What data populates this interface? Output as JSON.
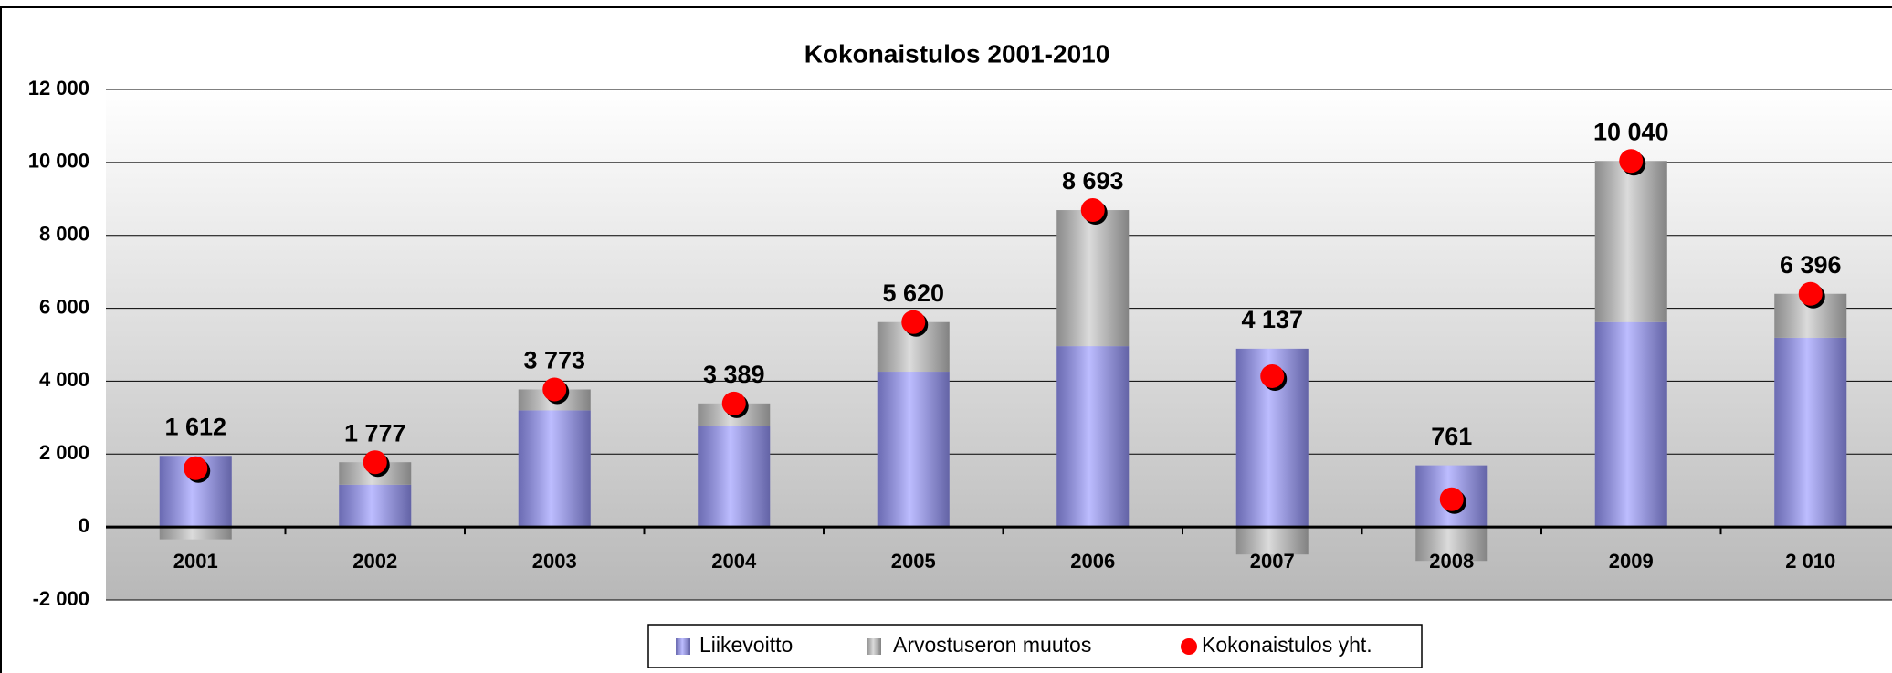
{
  "chart_data": {
    "type": "bar",
    "stacked": true,
    "title": "Kokonaistulos 2001-2010",
    "categories": [
      "2001",
      "2002",
      "2003",
      "2004",
      "2005",
      "2006",
      "2007",
      "2008",
      "2009",
      "2 010"
    ],
    "series": [
      {
        "name": "Liikevoitto",
        "color": "#9999ff",
        "values": [
          1950,
          1160,
          3200,
          2780,
          4260,
          4960,
          4890,
          1690,
          5620,
          5190
        ]
      },
      {
        "name": "Arvostuseron muutos",
        "color": "#c8c8c8",
        "values": [
          -338,
          617,
          573,
          609,
          1360,
          3733,
          -753,
          -929,
          4420,
          1206
        ]
      },
      {
        "name": "Kokonaistulos yht.",
        "color": "#ff0000",
        "type": "scatter",
        "values": [
          1612,
          1777,
          3773,
          3389,
          5620,
          8693,
          4137,
          761,
          10040,
          6396
        ],
        "value_labels": [
          "1 612",
          "1 777",
          "3 773",
          "3 389",
          "5 620",
          "8 693",
          "4 137",
          "761",
          "10 040",
          "6 396"
        ]
      }
    ],
    "ylim": [
      -2000,
      12000
    ],
    "yticks": [
      {
        "value": -2000,
        "label": "-2 000"
      },
      0,
      {
        "value": 2000,
        "label": "2 000"
      },
      {
        "value": 4000,
        "label": "4 000"
      },
      {
        "value": 6000,
        "label": "6 000"
      },
      {
        "value": 8000,
        "label": "8 000"
      },
      {
        "value": 10000,
        "label": "10 000"
      },
      {
        "value": 12000,
        "label": "12 000"
      }
    ],
    "grid": true
  }
}
